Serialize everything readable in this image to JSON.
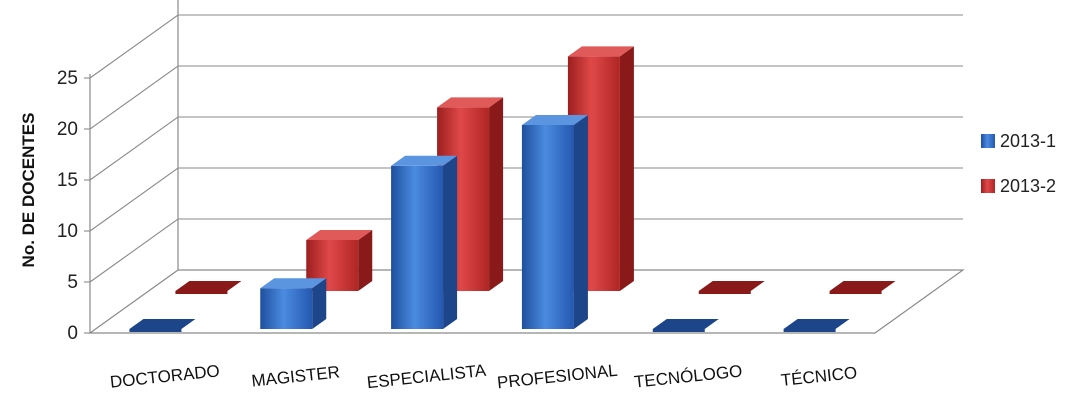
{
  "chart_data": {
    "type": "bar",
    "three_d": true,
    "title": "",
    "xlabel": "",
    "ylabel": "No. DE DOCENTES",
    "ylim": [
      0,
      25
    ],
    "yticks": [
      "0",
      "5",
      "10",
      "15",
      "20",
      "25"
    ],
    "grid": true,
    "legend_position": "right",
    "categories": [
      "DOCTORADO",
      "MAGISTER",
      "ESPECIALISTA",
      "PROFESIONAL",
      "TECNÓLOGO",
      "TÉCNICO"
    ],
    "series": [
      {
        "name": "2013-1",
        "color": "#2f6bc4",
        "values": [
          0,
          4,
          16,
          20,
          0,
          0
        ]
      },
      {
        "name": "2013-2",
        "color": "#c93030",
        "values": [
          0,
          5,
          18,
          23,
          0,
          0
        ]
      }
    ]
  }
}
